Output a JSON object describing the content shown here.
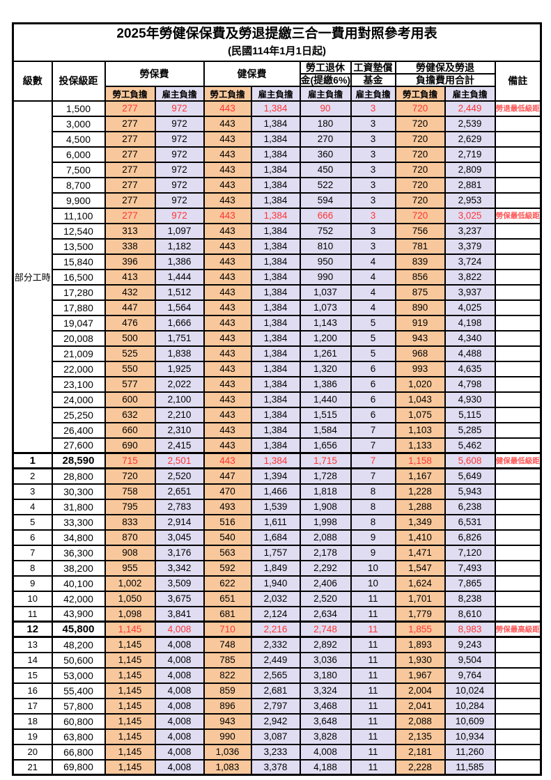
{
  "page": {
    "title": "2025年勞健保保費及勞退提繳三合一費用對照參考用表",
    "subtitle": "(民國114年1月1日起)"
  },
  "colors": {
    "orange": "#F8C89C",
    "lavender": "#E0DDF2",
    "red": "#FF3333",
    "note-red": "#FF5454"
  },
  "table": {
    "headers": {
      "level": "級數",
      "salary": "投保級距",
      "labor_ins": "勞保費",
      "health_ins": "健保費",
      "pension_line1": "勞工退休",
      "pension_line2": "金(提繳6%)",
      "wage_fund_line1": "工資墊償",
      "wage_fund_line2": "基金",
      "total_line1": "勞健保及勞退",
      "total_line2": "負擔費用合計",
      "note": "備註",
      "employee": "勞工負擔",
      "employer": "雇主負擔"
    },
    "part_time_label": "部分工時",
    "part_time_rowspan": 23,
    "section_break_rows": [
      23,
      24,
      34,
      35
    ],
    "rows": [
      {
        "level": "",
        "salary": "1,500",
        "labor_emp": "277",
        "labor_er": "972",
        "health_emp": "443",
        "health_er": "1,384",
        "pension_er": "90",
        "wage_er": "3",
        "total_emp": "720",
        "total_er": "2,449",
        "note": "勞退最低級距",
        "highlight": true
      },
      {
        "level": "",
        "salary": "3,000",
        "labor_emp": "277",
        "labor_er": "972",
        "health_emp": "443",
        "health_er": "1,384",
        "pension_er": "180",
        "wage_er": "3",
        "total_emp": "720",
        "total_er": "2,539",
        "note": ""
      },
      {
        "level": "",
        "salary": "4,500",
        "labor_emp": "277",
        "labor_er": "972",
        "health_emp": "443",
        "health_er": "1,384",
        "pension_er": "270",
        "wage_er": "3",
        "total_emp": "720",
        "total_er": "2,629",
        "note": ""
      },
      {
        "level": "",
        "salary": "6,000",
        "labor_emp": "277",
        "labor_er": "972",
        "health_emp": "443",
        "health_er": "1,384",
        "pension_er": "360",
        "wage_er": "3",
        "total_emp": "720",
        "total_er": "2,719",
        "note": ""
      },
      {
        "level": "",
        "salary": "7,500",
        "labor_emp": "277",
        "labor_er": "972",
        "health_emp": "443",
        "health_er": "1,384",
        "pension_er": "450",
        "wage_er": "3",
        "total_emp": "720",
        "total_er": "2,809",
        "note": ""
      },
      {
        "level": "",
        "salary": "8,700",
        "labor_emp": "277",
        "labor_er": "972",
        "health_emp": "443",
        "health_er": "1,384",
        "pension_er": "522",
        "wage_er": "3",
        "total_emp": "720",
        "total_er": "2,881",
        "note": ""
      },
      {
        "level": "",
        "salary": "9,900",
        "labor_emp": "277",
        "labor_er": "972",
        "health_emp": "443",
        "health_er": "1,384",
        "pension_er": "594",
        "wage_er": "3",
        "total_emp": "720",
        "total_er": "2,953",
        "note": ""
      },
      {
        "level": "",
        "salary": "11,100",
        "labor_emp": "277",
        "labor_er": "972",
        "health_emp": "443",
        "health_er": "1,384",
        "pension_er": "666",
        "wage_er": "3",
        "total_emp": "720",
        "total_er": "3,025",
        "note": "勞保最低級距",
        "highlight": true
      },
      {
        "level": "",
        "salary": "12,540",
        "labor_emp": "313",
        "labor_er": "1,097",
        "health_emp": "443",
        "health_er": "1,384",
        "pension_er": "752",
        "wage_er": "3",
        "total_emp": "756",
        "total_er": "3,237",
        "note": ""
      },
      {
        "level": "",
        "salary": "13,500",
        "labor_emp": "338",
        "labor_er": "1,182",
        "health_emp": "443",
        "health_er": "1,384",
        "pension_er": "810",
        "wage_er": "3",
        "total_emp": "781",
        "total_er": "3,379",
        "note": ""
      },
      {
        "level": "",
        "salary": "15,840",
        "labor_emp": "396",
        "labor_er": "1,386",
        "health_emp": "443",
        "health_er": "1,384",
        "pension_er": "950",
        "wage_er": "4",
        "total_emp": "839",
        "total_er": "3,724",
        "note": ""
      },
      {
        "level": "",
        "salary": "16,500",
        "labor_emp": "413",
        "labor_er": "1,444",
        "health_emp": "443",
        "health_er": "1,384",
        "pension_er": "990",
        "wage_er": "4",
        "total_emp": "856",
        "total_er": "3,822",
        "note": ""
      },
      {
        "level": "",
        "salary": "17,280",
        "labor_emp": "432",
        "labor_er": "1,512",
        "health_emp": "443",
        "health_er": "1,384",
        "pension_er": "1,037",
        "wage_er": "4",
        "total_emp": "875",
        "total_er": "3,937",
        "note": ""
      },
      {
        "level": "",
        "salary": "17,880",
        "labor_emp": "447",
        "labor_er": "1,564",
        "health_emp": "443",
        "health_er": "1,384",
        "pension_er": "1,073",
        "wage_er": "4",
        "total_emp": "890",
        "total_er": "4,025",
        "note": ""
      },
      {
        "level": "",
        "salary": "19,047",
        "labor_emp": "476",
        "labor_er": "1,666",
        "health_emp": "443",
        "health_er": "1,384",
        "pension_er": "1,143",
        "wage_er": "5",
        "total_emp": "919",
        "total_er": "4,198",
        "note": ""
      },
      {
        "level": "",
        "salary": "20,008",
        "labor_emp": "500",
        "labor_er": "1,751",
        "health_emp": "443",
        "health_er": "1,384",
        "pension_er": "1,200",
        "wage_er": "5",
        "total_emp": "943",
        "total_er": "4,340",
        "note": ""
      },
      {
        "level": "",
        "salary": "21,009",
        "labor_emp": "525",
        "labor_er": "1,838",
        "health_emp": "443",
        "health_er": "1,384",
        "pension_er": "1,261",
        "wage_er": "5",
        "total_emp": "968",
        "total_er": "4,488",
        "note": ""
      },
      {
        "level": "",
        "salary": "22,000",
        "labor_emp": "550",
        "labor_er": "1,925",
        "health_emp": "443",
        "health_er": "1,384",
        "pension_er": "1,320",
        "wage_er": "6",
        "total_emp": "993",
        "total_er": "4,635",
        "note": ""
      },
      {
        "level": "",
        "salary": "23,100",
        "labor_emp": "577",
        "labor_er": "2,022",
        "health_emp": "443",
        "health_er": "1,384",
        "pension_er": "1,386",
        "wage_er": "6",
        "total_emp": "1,020",
        "total_er": "4,798",
        "note": ""
      },
      {
        "level": "",
        "salary": "24,000",
        "labor_emp": "600",
        "labor_er": "2,100",
        "health_emp": "443",
        "health_er": "1,384",
        "pension_er": "1,440",
        "wage_er": "6",
        "total_emp": "1,043",
        "total_er": "4,930",
        "note": ""
      },
      {
        "level": "",
        "salary": "25,250",
        "labor_emp": "632",
        "labor_er": "2,210",
        "health_emp": "443",
        "health_er": "1,384",
        "pension_er": "1,515",
        "wage_er": "6",
        "total_emp": "1,075",
        "total_er": "5,115",
        "note": ""
      },
      {
        "level": "",
        "salary": "26,400",
        "labor_emp": "660",
        "labor_er": "2,310",
        "health_emp": "443",
        "health_er": "1,384",
        "pension_er": "1,584",
        "wage_er": "7",
        "total_emp": "1,103",
        "total_er": "5,285",
        "note": ""
      },
      {
        "level": "",
        "salary": "27,600",
        "labor_emp": "690",
        "labor_er": "2,415",
        "health_emp": "443",
        "health_er": "1,384",
        "pension_er": "1,656",
        "wage_er": "7",
        "total_emp": "1,133",
        "total_er": "5,462",
        "note": ""
      },
      {
        "level": "1",
        "salary": "28,590",
        "labor_emp": "715",
        "labor_er": "2,501",
        "health_emp": "443",
        "health_er": "1,384",
        "pension_er": "1,715",
        "wage_er": "7",
        "total_emp": "1,158",
        "total_er": "5,608",
        "note": "健保最低級距",
        "highlight": true,
        "emphasis": true
      },
      {
        "level": "2",
        "salary": "28,800",
        "labor_emp": "720",
        "labor_er": "2,520",
        "health_emp": "447",
        "health_er": "1,394",
        "pension_er": "1,728",
        "wage_er": "7",
        "total_emp": "1,167",
        "total_er": "5,649",
        "note": ""
      },
      {
        "level": "3",
        "salary": "30,300",
        "labor_emp": "758",
        "labor_er": "2,651",
        "health_emp": "470",
        "health_er": "1,466",
        "pension_er": "1,818",
        "wage_er": "8",
        "total_emp": "1,228",
        "total_er": "5,943",
        "note": ""
      },
      {
        "level": "4",
        "salary": "31,800",
        "labor_emp": "795",
        "labor_er": "2,783",
        "health_emp": "493",
        "health_er": "1,539",
        "pension_er": "1,908",
        "wage_er": "8",
        "total_emp": "1,288",
        "total_er": "6,238",
        "note": ""
      },
      {
        "level": "5",
        "salary": "33,300",
        "labor_emp": "833",
        "labor_er": "2,914",
        "health_emp": "516",
        "health_er": "1,611",
        "pension_er": "1,998",
        "wage_er": "8",
        "total_emp": "1,349",
        "total_er": "6,531",
        "note": ""
      },
      {
        "level": "6",
        "salary": "34,800",
        "labor_emp": "870",
        "labor_er": "3,045",
        "health_emp": "540",
        "health_er": "1,684",
        "pension_er": "2,088",
        "wage_er": "9",
        "total_emp": "1,410",
        "total_er": "6,826",
        "note": ""
      },
      {
        "level": "7",
        "salary": "36,300",
        "labor_emp": "908",
        "labor_er": "3,176",
        "health_emp": "563",
        "health_er": "1,757",
        "pension_er": "2,178",
        "wage_er": "9",
        "total_emp": "1,471",
        "total_er": "7,120",
        "note": ""
      },
      {
        "level": "8",
        "salary": "38,200",
        "labor_emp": "955",
        "labor_er": "3,342",
        "health_emp": "592",
        "health_er": "1,849",
        "pension_er": "2,292",
        "wage_er": "10",
        "total_emp": "1,547",
        "total_er": "7,493",
        "note": ""
      },
      {
        "level": "9",
        "salary": "40,100",
        "labor_emp": "1,002",
        "labor_er": "3,509",
        "health_emp": "622",
        "health_er": "1,940",
        "pension_er": "2,406",
        "wage_er": "10",
        "total_emp": "1,624",
        "total_er": "7,865",
        "note": ""
      },
      {
        "level": "10",
        "salary": "42,000",
        "labor_emp": "1,050",
        "labor_er": "3,675",
        "health_emp": "651",
        "health_er": "2,032",
        "pension_er": "2,520",
        "wage_er": "11",
        "total_emp": "1,701",
        "total_er": "8,238",
        "note": ""
      },
      {
        "level": "11",
        "salary": "43,900",
        "labor_emp": "1,098",
        "labor_er": "3,841",
        "health_emp": "681",
        "health_er": "2,124",
        "pension_er": "2,634",
        "wage_er": "11",
        "total_emp": "1,779",
        "total_er": "8,610",
        "note": ""
      },
      {
        "level": "12",
        "salary": "45,800",
        "labor_emp": "1,145",
        "labor_er": "4,008",
        "health_emp": "710",
        "health_er": "2,216",
        "pension_er": "2,748",
        "wage_er": "11",
        "total_emp": "1,855",
        "total_er": "8,983",
        "note": "勞保最高級距",
        "highlight": true,
        "emphasis": true
      },
      {
        "level": "13",
        "salary": "48,200",
        "labor_emp": "1,145",
        "labor_er": "4,008",
        "health_emp": "748",
        "health_er": "2,332",
        "pension_er": "2,892",
        "wage_er": "11",
        "total_emp": "1,893",
        "total_er": "9,243",
        "note": ""
      },
      {
        "level": "14",
        "salary": "50,600",
        "labor_emp": "1,145",
        "labor_er": "4,008",
        "health_emp": "785",
        "health_er": "2,449",
        "pension_er": "3,036",
        "wage_er": "11",
        "total_emp": "1,930",
        "total_er": "9,504",
        "note": ""
      },
      {
        "level": "15",
        "salary": "53,000",
        "labor_emp": "1,145",
        "labor_er": "4,008",
        "health_emp": "822",
        "health_er": "2,565",
        "pension_er": "3,180",
        "wage_er": "11",
        "total_emp": "1,967",
        "total_er": "9,764",
        "note": ""
      },
      {
        "level": "16",
        "salary": "55,400",
        "labor_emp": "1,145",
        "labor_er": "4,008",
        "health_emp": "859",
        "health_er": "2,681",
        "pension_er": "3,324",
        "wage_er": "11",
        "total_emp": "2,004",
        "total_er": "10,024",
        "note": ""
      },
      {
        "level": "17",
        "salary": "57,800",
        "labor_emp": "1,145",
        "labor_er": "4,008",
        "health_emp": "896",
        "health_er": "2,797",
        "pension_er": "3,468",
        "wage_er": "11",
        "total_emp": "2,041",
        "total_er": "10,284",
        "note": ""
      },
      {
        "level": "18",
        "salary": "60,800",
        "labor_emp": "1,145",
        "labor_er": "4,008",
        "health_emp": "943",
        "health_er": "2,942",
        "pension_er": "3,648",
        "wage_er": "11",
        "total_emp": "2,088",
        "total_er": "10,609",
        "note": ""
      },
      {
        "level": "19",
        "salary": "63,800",
        "labor_emp": "1,145",
        "labor_er": "4,008",
        "health_emp": "990",
        "health_er": "3,087",
        "pension_er": "3,828",
        "wage_er": "11",
        "total_emp": "2,135",
        "total_er": "10,934",
        "note": ""
      },
      {
        "level": "20",
        "salary": "66,800",
        "labor_emp": "1,145",
        "labor_er": "4,008",
        "health_emp": "1,036",
        "health_er": "3,233",
        "pension_er": "4,008",
        "wage_er": "11",
        "total_emp": "2,181",
        "total_er": "11,260",
        "note": ""
      },
      {
        "level": "21",
        "salary": "69,800",
        "labor_emp": "1,145",
        "labor_er": "4,008",
        "health_emp": "1,083",
        "health_er": "3,378",
        "pension_er": "4,188",
        "wage_er": "11",
        "total_emp": "2,228",
        "total_er": "11,585",
        "note": ""
      }
    ]
  }
}
